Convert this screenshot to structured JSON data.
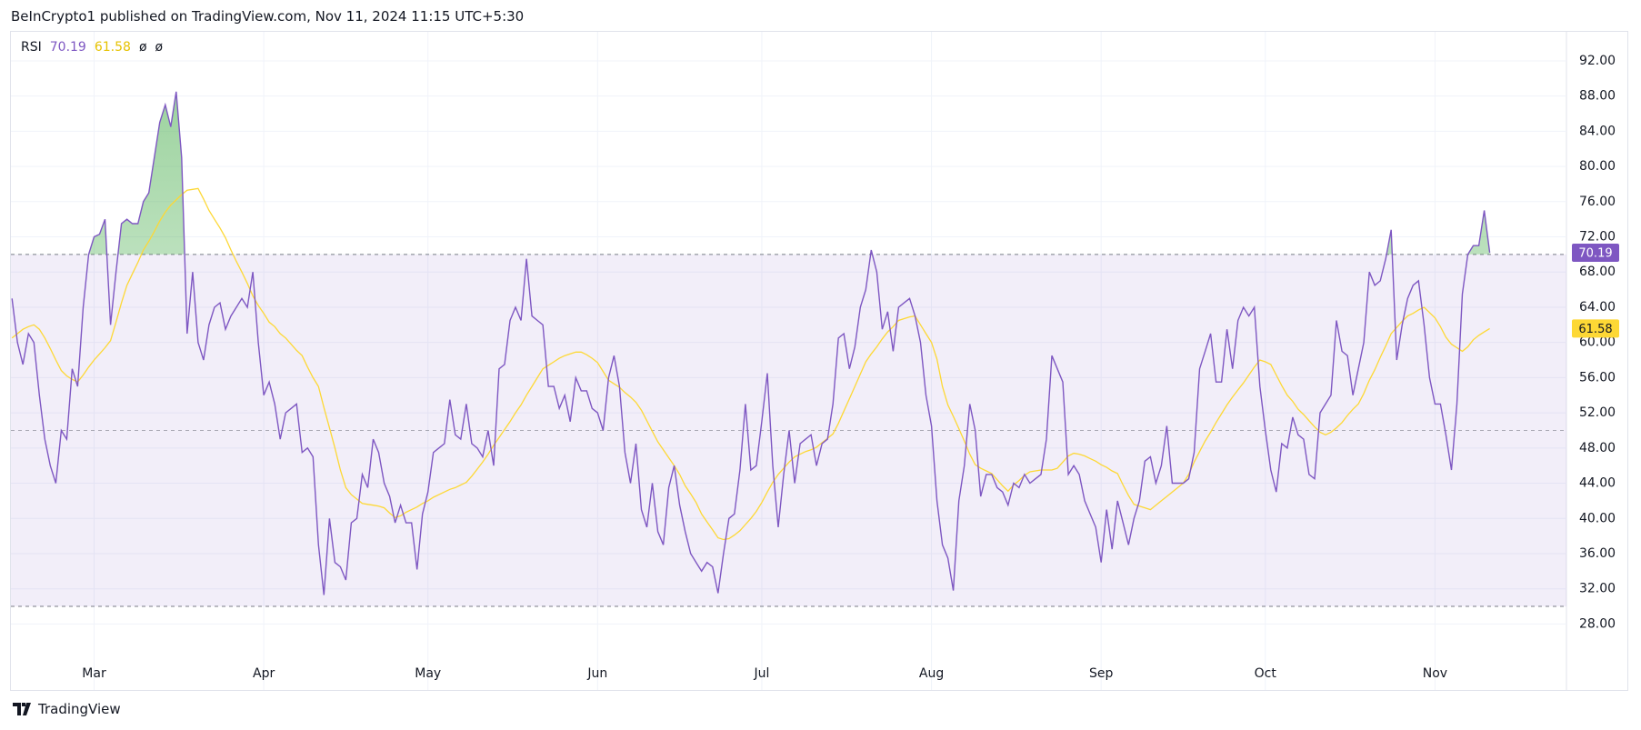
{
  "chart_data": {
    "type": "line",
    "header": "BeInCrypto1 published on TradingView.com, Nov 11, 2024 11:15 UTC+5:30",
    "indicator": "RSI",
    "na_symbols": [
      "ø",
      "ø"
    ],
    "footer": "TradingView",
    "categories": [
      null,
      null,
      null,
      null,
      null,
      null,
      null,
      null,
      null,
      null,
      null,
      null,
      null,
      null,
      null,
      "Mar",
      null,
      null,
      null,
      null,
      null,
      null,
      null,
      null,
      null,
      null,
      null,
      null,
      null,
      null,
      null,
      null,
      null,
      null,
      null,
      null,
      null,
      null,
      null,
      null,
      null,
      null,
      null,
      null,
      null,
      null,
      "Apr",
      null,
      null,
      null,
      null,
      null,
      null,
      null,
      null,
      null,
      null,
      null,
      null,
      null,
      null,
      null,
      null,
      null,
      null,
      null,
      null,
      null,
      null,
      null,
      null,
      null,
      null,
      null,
      null,
      null,
      "May",
      null,
      null,
      null,
      null,
      null,
      null,
      null,
      null,
      null,
      null,
      null,
      null,
      null,
      null,
      null,
      null,
      null,
      null,
      null,
      null,
      null,
      null,
      null,
      null,
      null,
      null,
      null,
      null,
      null,
      null,
      "Jun",
      null,
      null,
      null,
      null,
      null,
      null,
      null,
      null,
      null,
      null,
      null,
      null,
      null,
      null,
      null,
      null,
      null,
      null,
      null,
      null,
      null,
      null,
      null,
      null,
      null,
      null,
      null,
      null,
      null,
      "Jul",
      null,
      null,
      null,
      null,
      null,
      null,
      null,
      null,
      null,
      null,
      null,
      null,
      null,
      null,
      null,
      null,
      null,
      null,
      null,
      null,
      null,
      null,
      null,
      null,
      null,
      null,
      null,
      null,
      null,
      null,
      "Aug",
      null,
      null,
      null,
      null,
      null,
      null,
      null,
      null,
      null,
      null,
      null,
      null,
      null,
      null,
      null,
      null,
      null,
      null,
      null,
      null,
      null,
      null,
      null,
      null,
      null,
      null,
      null,
      null,
      null,
      null,
      "Sep",
      null,
      null,
      null,
      null,
      null,
      null,
      null,
      null,
      null,
      null,
      null,
      null,
      null,
      null,
      null,
      null,
      null,
      null,
      null,
      null,
      null,
      null,
      null,
      null,
      null,
      null,
      null,
      null,
      null,
      "Oct",
      null,
      null,
      null,
      null,
      null,
      null,
      null,
      null,
      null,
      null,
      null,
      null,
      null,
      null,
      null,
      null,
      null,
      null,
      null,
      null,
      null,
      null,
      null,
      null,
      null,
      null,
      null,
      null,
      null,
      null,
      "Nov",
      null,
      null,
      null,
      null,
      null,
      null,
      null,
      null,
      null,
      null
    ],
    "series": [
      {
        "name": "RSI",
        "color": "#7e57c2",
        "values": [
          65,
          60,
          57.5,
          61,
          60,
          54,
          49,
          46,
          44,
          50,
          49,
          57,
          55,
          64,
          70,
          72,
          72.3,
          74,
          62,
          68,
          73.5,
          74,
          73.5,
          73.5,
          76,
          77,
          81,
          85,
          87,
          84.5,
          88.5,
          81,
          61,
          68,
          60,
          58,
          62,
          64,
          64.5,
          61.5,
          63,
          64,
          65,
          64,
          68,
          60,
          54,
          55.5,
          53,
          49,
          52,
          52.5,
          53,
          47.5,
          48,
          47,
          37,
          31.3,
          40,
          35,
          34.5,
          33,
          39.5,
          40,
          45,
          43.5,
          49,
          47.5,
          44,
          42.5,
          39.5,
          41.5,
          39.5,
          39.5,
          34.2,
          40.5,
          43,
          47.5,
          48,
          48.5,
          53.5,
          49.5,
          49,
          53,
          48.5,
          48,
          47,
          50,
          46,
          57,
          57.5,
          62.5,
          64,
          62.5,
          69.5,
          63,
          62.5,
          62,
          55,
          55,
          52.5,
          54,
          51,
          56,
          54.5,
          54.5,
          52.5,
          52,
          50,
          56,
          58.5,
          55,
          47.5,
          44,
          48.5,
          41,
          39,
          44,
          38.5,
          37,
          43.5,
          46,
          41.5,
          38.5,
          36,
          35,
          34,
          35,
          34.5,
          31.5,
          36,
          40,
          40.5,
          45.5,
          53,
          45.5,
          46,
          51,
          56.5,
          46,
          39,
          45,
          50,
          44,
          48.5,
          49,
          49.5,
          46,
          48.5,
          49,
          53,
          60.5,
          61,
          57,
          59.5,
          64,
          66,
          70.5,
          68,
          61.5,
          63.5,
          59,
          64,
          64.5,
          65,
          63,
          60,
          54,
          50.5,
          42,
          37,
          35.5,
          31.8,
          42,
          46,
          53,
          50,
          42.5,
          45,
          45,
          43.5,
          43,
          41.5,
          44,
          43.5,
          45,
          44,
          44.5,
          45,
          49,
          58.5,
          57,
          55.5,
          45,
          46,
          45,
          42,
          40.5,
          39,
          35,
          41,
          36.5,
          42,
          39.5,
          37,
          40,
          42,
          46.5,
          47,
          44,
          46,
          50.5,
          44,
          44,
          44,
          44.5,
          47.5,
          57,
          59,
          61,
          55.5,
          55.5,
          61.5,
          57,
          62.5,
          64,
          63,
          64,
          55,
          50,
          45.5,
          43,
          48.5,
          48,
          51.5,
          49.5,
          49,
          45,
          44.5,
          52,
          53,
          54,
          62.5,
          59,
          58.5,
          54,
          57,
          60,
          68,
          66.5,
          67,
          69.5,
          72.8,
          58,
          62,
          65,
          66.5,
          67,
          62,
          56,
          53,
          53,
          49.5,
          45.5,
          53,
          65.5,
          70,
          71,
          71,
          75,
          70.19
        ]
      },
      {
        "color": "#fdd835",
        "values": [
          60.5,
          61,
          61.5,
          61.8,
          62,
          61.5,
          60.5,
          59.3,
          58,
          56.8,
          56.2,
          55.8,
          55.5,
          56.3,
          57.2,
          58,
          58.7,
          59.4,
          60.2,
          62.3,
          64.5,
          66.5,
          67.8,
          69.1,
          70.5,
          71.5,
          72.6,
          73.8,
          74.8,
          75.6,
          76.2,
          76.8,
          77.3,
          77.4,
          77.5,
          76.3,
          75,
          74,
          73,
          71.9,
          70.5,
          69.2,
          68,
          66.7,
          65.3,
          64.2,
          63.3,
          62.3,
          61.8,
          61,
          60.5,
          59.8,
          59.1,
          58.5,
          57.2,
          56,
          55,
          52.6,
          50.3,
          48,
          45.5,
          43.5,
          42.7,
          42.2,
          41.7,
          41.6,
          41.5,
          41.4,
          41.2,
          40.6,
          40.1,
          40.3,
          40.7,
          41,
          41.3,
          41.7,
          42,
          42.4,
          42.7,
          43,
          43.3,
          43.5,
          43.8,
          44.1,
          44.8,
          45.6,
          46.4,
          47.3,
          48.3,
          49.2,
          50.1,
          51,
          52,
          52.9,
          54,
          55,
          56,
          57,
          57.4,
          57.8,
          58.2,
          58.5,
          58.7,
          58.9,
          58.9,
          58.6,
          58.2,
          57.7,
          56.7,
          55.7,
          55.3,
          54.9,
          54.3,
          53.8,
          53.2,
          52.3,
          51.1,
          49.9,
          48.7,
          47.8,
          46.9,
          46,
          45,
          43.7,
          42.8,
          41.8,
          40.5,
          39.6,
          38.7,
          37.8,
          37.6,
          37.7,
          38.1,
          38.6,
          39.3,
          40,
          40.8,
          41.8,
          43,
          44.1,
          45,
          45.7,
          46.4,
          47,
          47.3,
          47.6,
          47.8,
          48.1,
          48.6,
          49.1,
          49.6,
          50.8,
          52.2,
          53.6,
          55,
          56.4,
          57.8,
          58.7,
          59.5,
          60.4,
          61.2,
          61.8,
          62.5,
          62.7,
          62.9,
          63,
          62,
          61,
          60,
          58.1,
          55,
          52.9,
          51.6,
          50.2,
          48.8,
          47.3,
          46.1,
          45.7,
          45.4,
          45.1,
          44.4,
          43.7,
          43.1,
          43.8,
          44.3,
          44.9,
          45.3,
          45.4,
          45.5,
          45.5,
          45.5,
          45.7,
          46.4,
          47.1,
          47.4,
          47.3,
          47.1,
          46.8,
          46.5,
          46.1,
          45.8,
          45.4,
          45.1,
          43.8,
          42.6,
          41.6,
          41.4,
          41.2,
          41,
          41.5,
          42,
          42.5,
          43,
          43.5,
          44,
          45,
          46.4,
          47.6,
          48.8,
          49.8,
          50.9,
          51.9,
          52.9,
          53.8,
          54.6,
          55.4,
          56.3,
          57.2,
          58,
          57.8,
          57.5,
          56.3,
          55.1,
          54,
          53.3,
          52.4,
          51.8,
          51.1,
          50.4,
          49.8,
          49.5,
          49.8,
          50.3,
          50.9,
          51.7,
          52.4,
          53,
          54.2,
          55.7,
          56.9,
          58.3,
          59.6,
          61,
          61.7,
          62.4,
          63,
          63.3,
          63.7,
          64,
          63.4,
          62.8,
          61.8,
          60.6,
          59.8,
          59.4,
          59,
          59.5,
          60.3,
          60.8,
          61.2,
          61.58
        ]
      }
    ],
    "ylim": [
      20.5,
      95.3
    ],
    "yticks": [
      {
        "value": 28,
        "label": "28.00"
      },
      {
        "value": 32,
        "label": "32.00"
      },
      {
        "value": 36,
        "label": "36.00"
      },
      {
        "value": 40,
        "label": "40.00"
      },
      {
        "value": 44,
        "label": "44.00"
      },
      {
        "value": 48,
        "label": "48.00"
      },
      {
        "value": 52,
        "label": "52.00"
      },
      {
        "value": 56,
        "label": "56.00"
      },
      {
        "value": 60,
        "label": "60.00"
      },
      {
        "value": 64,
        "label": "64.00"
      },
      {
        "value": 68,
        "label": "68.00"
      },
      {
        "value": 72,
        "label": "72.00"
      },
      {
        "value": 76,
        "label": "76.00"
      },
      {
        "value": 80,
        "label": "80.00"
      },
      {
        "value": 84,
        "label": "84.00"
      },
      {
        "value": 88,
        "label": "88.00"
      },
      {
        "value": 92,
        "label": "92.00"
      }
    ],
    "grid": true,
    "bands": {
      "upper": 70,
      "middle": 50,
      "lower": 30,
      "fill": "#7e57c2",
      "line_color": "#787b86"
    },
    "overbought_color": "#4caf50"
  }
}
